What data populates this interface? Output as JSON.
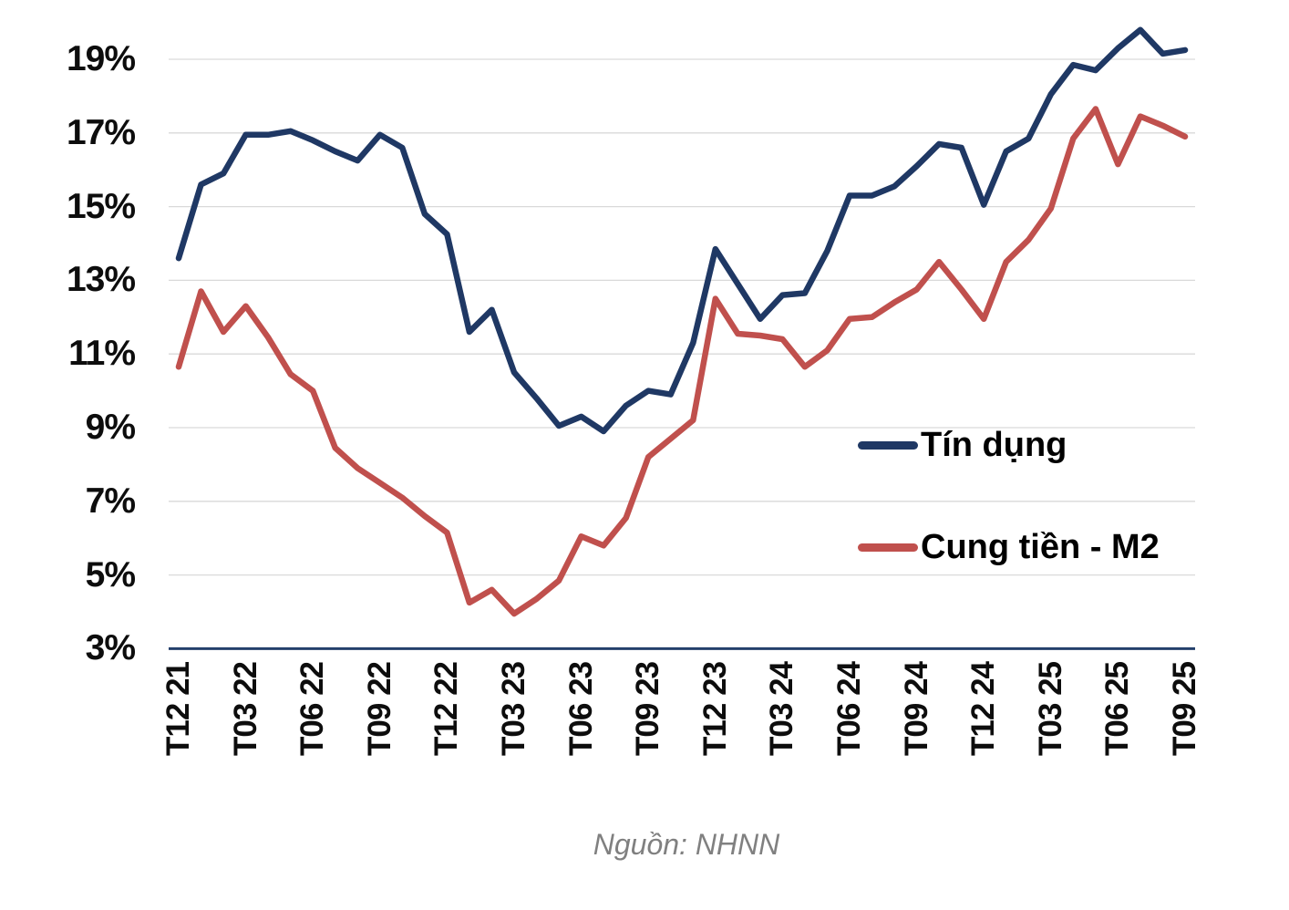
{
  "chart_data": {
    "type": "line",
    "title": "",
    "y_axis": {
      "unit": "%",
      "min": 3,
      "max": 19,
      "tick_values": [
        19,
        17,
        15,
        13,
        11,
        9,
        7,
        5,
        3
      ],
      "tick_labels": [
        "19%",
        "17%",
        "15%",
        "13%",
        "11%",
        "9%",
        "7%",
        "5%",
        "3%"
      ]
    },
    "x_axis": {
      "tick_labels": [
        "T12 21",
        "T03 22",
        "T06 22",
        "T09 22",
        "T12 22",
        "T03 23",
        "T06 23",
        "T09 23",
        "T12 23",
        "T03 24",
        "T06 24",
        "T09 24",
        "T12 24",
        "T03 25",
        "T06 25",
        "T09 25"
      ],
      "months_between_ticks": 3,
      "n_points": 46
    },
    "series": [
      {
        "name": "Tín dụng",
        "color": "#1F3864",
        "values": [
          13.6,
          15.6,
          15.9,
          16.95,
          16.95,
          17.05,
          16.8,
          16.5,
          16.25,
          16.95,
          16.6,
          14.8,
          14.25,
          11.6,
          12.2,
          10.5,
          9.8,
          9.05,
          9.3,
          8.9,
          9.6,
          10.0,
          9.9,
          11.3,
          13.85,
          12.9,
          11.95,
          12.6,
          12.65,
          13.8,
          15.3,
          15.3,
          15.55,
          16.1,
          16.7,
          16.6,
          15.05,
          16.5,
          16.85,
          18.05,
          18.85,
          18.7,
          19.3,
          19.8,
          19.15,
          19.25
        ]
      },
      {
        "name": "Cung tiền - M2",
        "color": "#C0504D",
        "values": [
          10.65,
          12.7,
          11.6,
          12.3,
          11.45,
          10.45,
          10.0,
          8.45,
          7.9,
          7.5,
          7.1,
          6.6,
          6.15,
          4.25,
          4.6,
          3.95,
          4.35,
          4.85,
          6.05,
          5.8,
          6.55,
          8.2,
          8.7,
          9.2,
          12.5,
          11.55,
          11.5,
          11.4,
          10.65,
          11.1,
          11.95,
          12.0,
          12.4,
          12.75,
          13.5,
          12.75,
          11.95,
          13.5,
          14.1,
          14.95,
          16.85,
          17.65,
          16.15,
          17.45,
          17.2,
          16.9
        ]
      }
    ],
    "legend": {
      "position": "inside-right"
    },
    "grid": {
      "show": true,
      "color": "#D9D9D9",
      "axis_color": "#24406B"
    },
    "source_note": "Nguồn: NHNN"
  }
}
